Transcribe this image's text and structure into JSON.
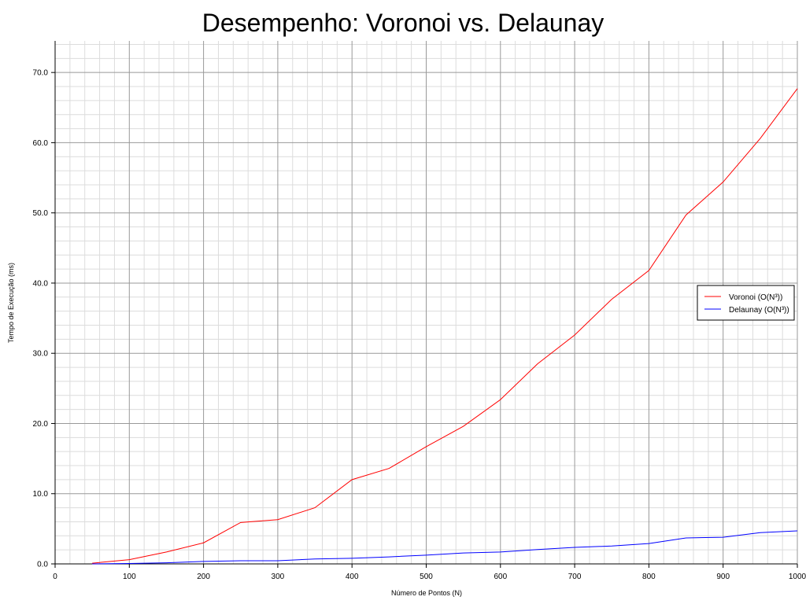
{
  "chart_data": {
    "type": "line",
    "title": "Desempenho: Voronoi vs. Delaunay",
    "xlabel": "Número de Pontos (N)",
    "ylabel": "Tempo de Execução (ms)",
    "xlim": [
      0,
      1000
    ],
    "ylim": [
      0,
      74.5
    ],
    "x_ticks": [
      0,
      100,
      200,
      300,
      400,
      500,
      600,
      700,
      800,
      900,
      1000
    ],
    "y_ticks": [
      0,
      10,
      20,
      30,
      40,
      50,
      60,
      70
    ],
    "y_tick_labels": [
      "0.0",
      "10.0",
      "20.0",
      "30.0",
      "40.0",
      "50.0",
      "60.0",
      "70.0"
    ],
    "grid": true,
    "legend_position": "right",
    "x": [
      50,
      100,
      150,
      200,
      250,
      300,
      350,
      400,
      450,
      500,
      550,
      600,
      650,
      700,
      750,
      800,
      850,
      900,
      950,
      1000
    ],
    "series": [
      {
        "name": "Voronoi (O(N³))",
        "color": "#ff0000",
        "values": [
          0.1,
          0.6,
          1.7,
          3.0,
          5.9,
          6.3,
          8.0,
          12.0,
          13.6,
          16.7,
          19.6,
          23.4,
          28.5,
          32.6,
          37.7,
          41.8,
          49.7,
          54.4,
          60.6,
          67.7
        ]
      },
      {
        "name": "Delaunay (O(N³))",
        "color": "#0000ff",
        "values": [
          0.0,
          0.05,
          0.15,
          0.35,
          0.45,
          0.45,
          0.7,
          0.8,
          1.0,
          1.25,
          1.55,
          1.7,
          2.05,
          2.35,
          2.55,
          2.9,
          3.7,
          3.8,
          4.45,
          4.7
        ]
      }
    ]
  }
}
